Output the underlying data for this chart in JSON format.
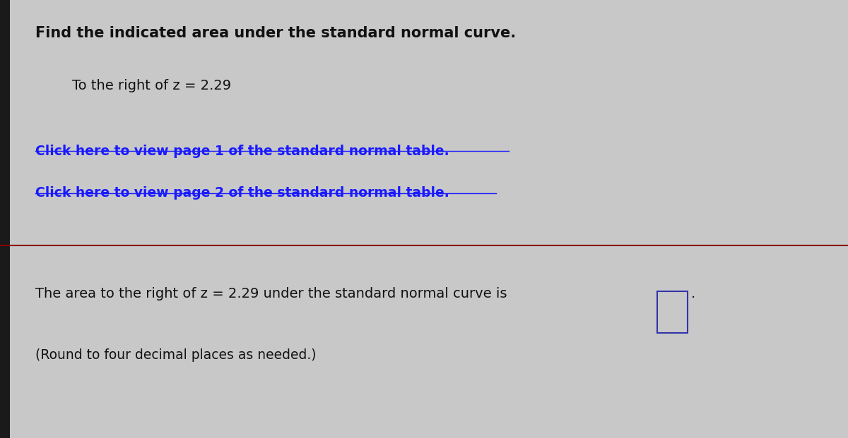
{
  "bg_color": "#c8c8c8",
  "left_black_bar_color": "#1a1a1a",
  "title_text": "Find the indicated area under the standard normal curve.",
  "subtitle_text": "To the right of z = 2.29",
  "link1_text": "Click here to view page 1 of the standard normal table.",
  "link2_text": "Click here to view page 2 of the standard normal table.",
  "link_color": "#1a1aff",
  "divider_color": "#8b0000",
  "bottom_text1_prefix": "The area to the right of z = 2.29 under the standard normal curve is",
  "bottom_text1_suffix": ".",
  "bottom_text2": "(Round to four decimal places as needed.)",
  "title_fontsize": 15,
  "subtitle_fontsize": 14,
  "link_fontsize": 13.5,
  "body_fontsize": 14,
  "small_fontsize": 13.5,
  "text_color": "#111111",
  "title_color": "#111111",
  "box_border_color": "#3333aa"
}
